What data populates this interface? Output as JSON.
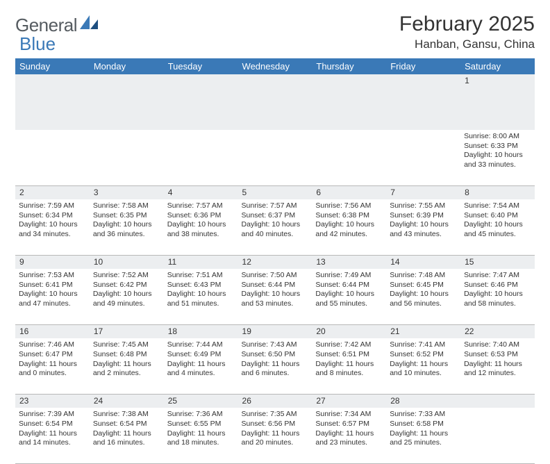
{
  "branding": {
    "logo_text_1": "General",
    "logo_text_2": "Blue",
    "logo_color_gray": "#555b60",
    "logo_color_blue": "#3a79b7"
  },
  "header": {
    "month_title": "February 2025",
    "location": "Hanban, Gansu, China"
  },
  "theme": {
    "header_bg": "#3a79b7",
    "header_fg": "#ffffff",
    "daynum_bg": "#eceef0",
    "border_color": "#b8b8b8",
    "body_bg": "#ffffff",
    "text_color": "#333333"
  },
  "weekdays": [
    "Sunday",
    "Monday",
    "Tuesday",
    "Wednesday",
    "Thursday",
    "Friday",
    "Saturday"
  ],
  "weeks": [
    [
      null,
      null,
      null,
      null,
      null,
      null,
      {
        "n": "1",
        "sr": "Sunrise: 8:00 AM",
        "ss": "Sunset: 6:33 PM",
        "d1": "Daylight: 10 hours",
        "d2": "and 33 minutes."
      }
    ],
    [
      {
        "n": "2",
        "sr": "Sunrise: 7:59 AM",
        "ss": "Sunset: 6:34 PM",
        "d1": "Daylight: 10 hours",
        "d2": "and 34 minutes."
      },
      {
        "n": "3",
        "sr": "Sunrise: 7:58 AM",
        "ss": "Sunset: 6:35 PM",
        "d1": "Daylight: 10 hours",
        "d2": "and 36 minutes."
      },
      {
        "n": "4",
        "sr": "Sunrise: 7:57 AM",
        "ss": "Sunset: 6:36 PM",
        "d1": "Daylight: 10 hours",
        "d2": "and 38 minutes."
      },
      {
        "n": "5",
        "sr": "Sunrise: 7:57 AM",
        "ss": "Sunset: 6:37 PM",
        "d1": "Daylight: 10 hours",
        "d2": "and 40 minutes."
      },
      {
        "n": "6",
        "sr": "Sunrise: 7:56 AM",
        "ss": "Sunset: 6:38 PM",
        "d1": "Daylight: 10 hours",
        "d2": "and 42 minutes."
      },
      {
        "n": "7",
        "sr": "Sunrise: 7:55 AM",
        "ss": "Sunset: 6:39 PM",
        "d1": "Daylight: 10 hours",
        "d2": "and 43 minutes."
      },
      {
        "n": "8",
        "sr": "Sunrise: 7:54 AM",
        "ss": "Sunset: 6:40 PM",
        "d1": "Daylight: 10 hours",
        "d2": "and 45 minutes."
      }
    ],
    [
      {
        "n": "9",
        "sr": "Sunrise: 7:53 AM",
        "ss": "Sunset: 6:41 PM",
        "d1": "Daylight: 10 hours",
        "d2": "and 47 minutes."
      },
      {
        "n": "10",
        "sr": "Sunrise: 7:52 AM",
        "ss": "Sunset: 6:42 PM",
        "d1": "Daylight: 10 hours",
        "d2": "and 49 minutes."
      },
      {
        "n": "11",
        "sr": "Sunrise: 7:51 AM",
        "ss": "Sunset: 6:43 PM",
        "d1": "Daylight: 10 hours",
        "d2": "and 51 minutes."
      },
      {
        "n": "12",
        "sr": "Sunrise: 7:50 AM",
        "ss": "Sunset: 6:44 PM",
        "d1": "Daylight: 10 hours",
        "d2": "and 53 minutes."
      },
      {
        "n": "13",
        "sr": "Sunrise: 7:49 AM",
        "ss": "Sunset: 6:44 PM",
        "d1": "Daylight: 10 hours",
        "d2": "and 55 minutes."
      },
      {
        "n": "14",
        "sr": "Sunrise: 7:48 AM",
        "ss": "Sunset: 6:45 PM",
        "d1": "Daylight: 10 hours",
        "d2": "and 56 minutes."
      },
      {
        "n": "15",
        "sr": "Sunrise: 7:47 AM",
        "ss": "Sunset: 6:46 PM",
        "d1": "Daylight: 10 hours",
        "d2": "and 58 minutes."
      }
    ],
    [
      {
        "n": "16",
        "sr": "Sunrise: 7:46 AM",
        "ss": "Sunset: 6:47 PM",
        "d1": "Daylight: 11 hours",
        "d2": "and 0 minutes."
      },
      {
        "n": "17",
        "sr": "Sunrise: 7:45 AM",
        "ss": "Sunset: 6:48 PM",
        "d1": "Daylight: 11 hours",
        "d2": "and 2 minutes."
      },
      {
        "n": "18",
        "sr": "Sunrise: 7:44 AM",
        "ss": "Sunset: 6:49 PM",
        "d1": "Daylight: 11 hours",
        "d2": "and 4 minutes."
      },
      {
        "n": "19",
        "sr": "Sunrise: 7:43 AM",
        "ss": "Sunset: 6:50 PM",
        "d1": "Daylight: 11 hours",
        "d2": "and 6 minutes."
      },
      {
        "n": "20",
        "sr": "Sunrise: 7:42 AM",
        "ss": "Sunset: 6:51 PM",
        "d1": "Daylight: 11 hours",
        "d2": "and 8 minutes."
      },
      {
        "n": "21",
        "sr": "Sunrise: 7:41 AM",
        "ss": "Sunset: 6:52 PM",
        "d1": "Daylight: 11 hours",
        "d2": "and 10 minutes."
      },
      {
        "n": "22",
        "sr": "Sunrise: 7:40 AM",
        "ss": "Sunset: 6:53 PM",
        "d1": "Daylight: 11 hours",
        "d2": "and 12 minutes."
      }
    ],
    [
      {
        "n": "23",
        "sr": "Sunrise: 7:39 AM",
        "ss": "Sunset: 6:54 PM",
        "d1": "Daylight: 11 hours",
        "d2": "and 14 minutes."
      },
      {
        "n": "24",
        "sr": "Sunrise: 7:38 AM",
        "ss": "Sunset: 6:54 PM",
        "d1": "Daylight: 11 hours",
        "d2": "and 16 minutes."
      },
      {
        "n": "25",
        "sr": "Sunrise: 7:36 AM",
        "ss": "Sunset: 6:55 PM",
        "d1": "Daylight: 11 hours",
        "d2": "and 18 minutes."
      },
      {
        "n": "26",
        "sr": "Sunrise: 7:35 AM",
        "ss": "Sunset: 6:56 PM",
        "d1": "Daylight: 11 hours",
        "d2": "and 20 minutes."
      },
      {
        "n": "27",
        "sr": "Sunrise: 7:34 AM",
        "ss": "Sunset: 6:57 PM",
        "d1": "Daylight: 11 hours",
        "d2": "and 23 minutes."
      },
      {
        "n": "28",
        "sr": "Sunrise: 7:33 AM",
        "ss": "Sunset: 6:58 PM",
        "d1": "Daylight: 11 hours",
        "d2": "and 25 minutes."
      },
      null
    ]
  ]
}
